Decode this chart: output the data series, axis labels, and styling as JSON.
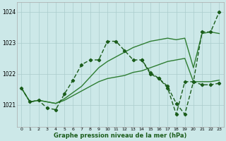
{
  "background_color": "#cce8e8",
  "grid_color": "#aacccc",
  "line_color_dark": "#1a5c1a",
  "line_color_medium": "#2e7d32",
  "ylabel_values": [
    1021,
    1022,
    1023,
    1024
  ],
  "xlabel_values": [
    0,
    1,
    2,
    3,
    4,
    5,
    6,
    7,
    8,
    9,
    10,
    11,
    12,
    13,
    14,
    15,
    16,
    17,
    18,
    19,
    20,
    21,
    22,
    23
  ],
  "xlim": [
    -0.5,
    23.5
  ],
  "ylim": [
    1020.3,
    1024.3
  ],
  "xlabel": "Graphe pression niveau de la mer (hPa)",
  "series": [
    {
      "x": [
        0,
        1,
        2,
        3,
        4,
        5,
        6,
        7,
        8,
        9,
        10,
        11,
        12,
        13,
        14,
        15,
        16,
        17,
        18,
        19,
        20,
        21,
        22,
        23
      ],
      "y": [
        1021.55,
        1021.1,
        1021.15,
        1021.1,
        1021.05,
        1021.15,
        1021.3,
        1021.45,
        1021.6,
        1021.75,
        1021.85,
        1021.9,
        1021.95,
        1022.05,
        1022.1,
        1022.2,
        1022.3,
        1022.4,
        1022.45,
        1022.5,
        1021.75,
        1021.75,
        1021.75,
        1021.8
      ],
      "marker": false,
      "lw": 1.0,
      "linestyle": "solid"
    },
    {
      "x": [
        0,
        1,
        2,
        3,
        4,
        5,
        6,
        7,
        8,
        9,
        10,
        11,
        12,
        13,
        14,
        15,
        16,
        17,
        18,
        19,
        20,
        21,
        22,
        23
      ],
      "y": [
        1021.55,
        1021.1,
        1021.15,
        1021.1,
        1021.05,
        1021.2,
        1021.4,
        1021.6,
        1021.9,
        1022.2,
        1022.4,
        1022.55,
        1022.7,
        1022.85,
        1022.95,
        1023.05,
        1023.1,
        1023.15,
        1023.1,
        1023.15,
        1022.2,
        1023.3,
        1023.35,
        1023.3
      ],
      "marker": false,
      "lw": 1.0,
      "linestyle": "solid"
    },
    {
      "x": [
        0,
        1,
        2,
        3,
        4,
        5,
        6,
        7,
        8,
        9,
        10,
        11,
        12,
        13,
        14,
        15,
        16,
        17,
        18,
        19,
        20,
        21,
        22,
        23
      ],
      "y": [
        1021.55,
        1021.1,
        1021.15,
        1020.9,
        1020.85,
        1021.35,
        1021.8,
        1022.3,
        1022.45,
        1022.45,
        1023.05,
        1023.05,
        1022.75,
        1022.45,
        1022.45,
        1022.05,
        1021.85,
        1021.6,
        1021.05,
        1020.7,
        1021.75,
        1021.65,
        1021.65,
        1021.7
      ],
      "marker": true,
      "lw": 1.0,
      "linestyle": "dashed"
    },
    {
      "x": [
        14,
        15,
        16,
        17,
        18,
        19,
        20,
        21,
        22,
        23
      ],
      "y": [
        1022.45,
        1022.0,
        1021.85,
        1021.55,
        1020.7,
        1021.75,
        1021.75,
        1023.35,
        1023.35,
        1024.0
      ],
      "marker": true,
      "lw": 1.0,
      "linestyle": "dashed"
    }
  ]
}
